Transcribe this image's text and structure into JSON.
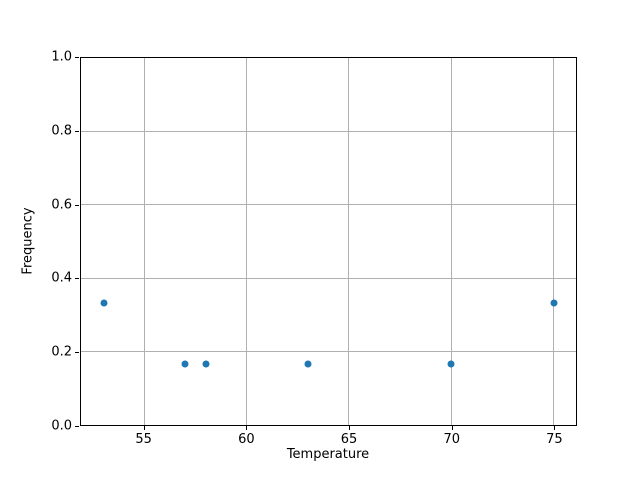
{
  "chart_data": {
    "type": "scatter",
    "title": "",
    "xlabel": "Temperature",
    "ylabel": "Frequency",
    "x": [
      53,
      57,
      58,
      63,
      70,
      75
    ],
    "y": [
      0.333,
      0.167,
      0.167,
      0.167,
      0.167,
      0.333
    ],
    "xlim": [
      51.9,
      76.1
    ],
    "ylim": [
      0.0,
      1.0
    ],
    "xticks": [
      55,
      60,
      65,
      70,
      75
    ],
    "xtick_labels": [
      "55",
      "60",
      "65",
      "70",
      "75"
    ],
    "yticks": [
      0.0,
      0.2,
      0.4,
      0.6,
      0.8,
      1.0
    ],
    "ytick_labels": [
      "0.0",
      "0.2",
      "0.4",
      "0.6",
      "0.8",
      "1.0"
    ],
    "grid": true,
    "legend": null,
    "point_color": "#1f77b4",
    "grid_color": "#b0b0b0",
    "spine_color": "#000000"
  }
}
